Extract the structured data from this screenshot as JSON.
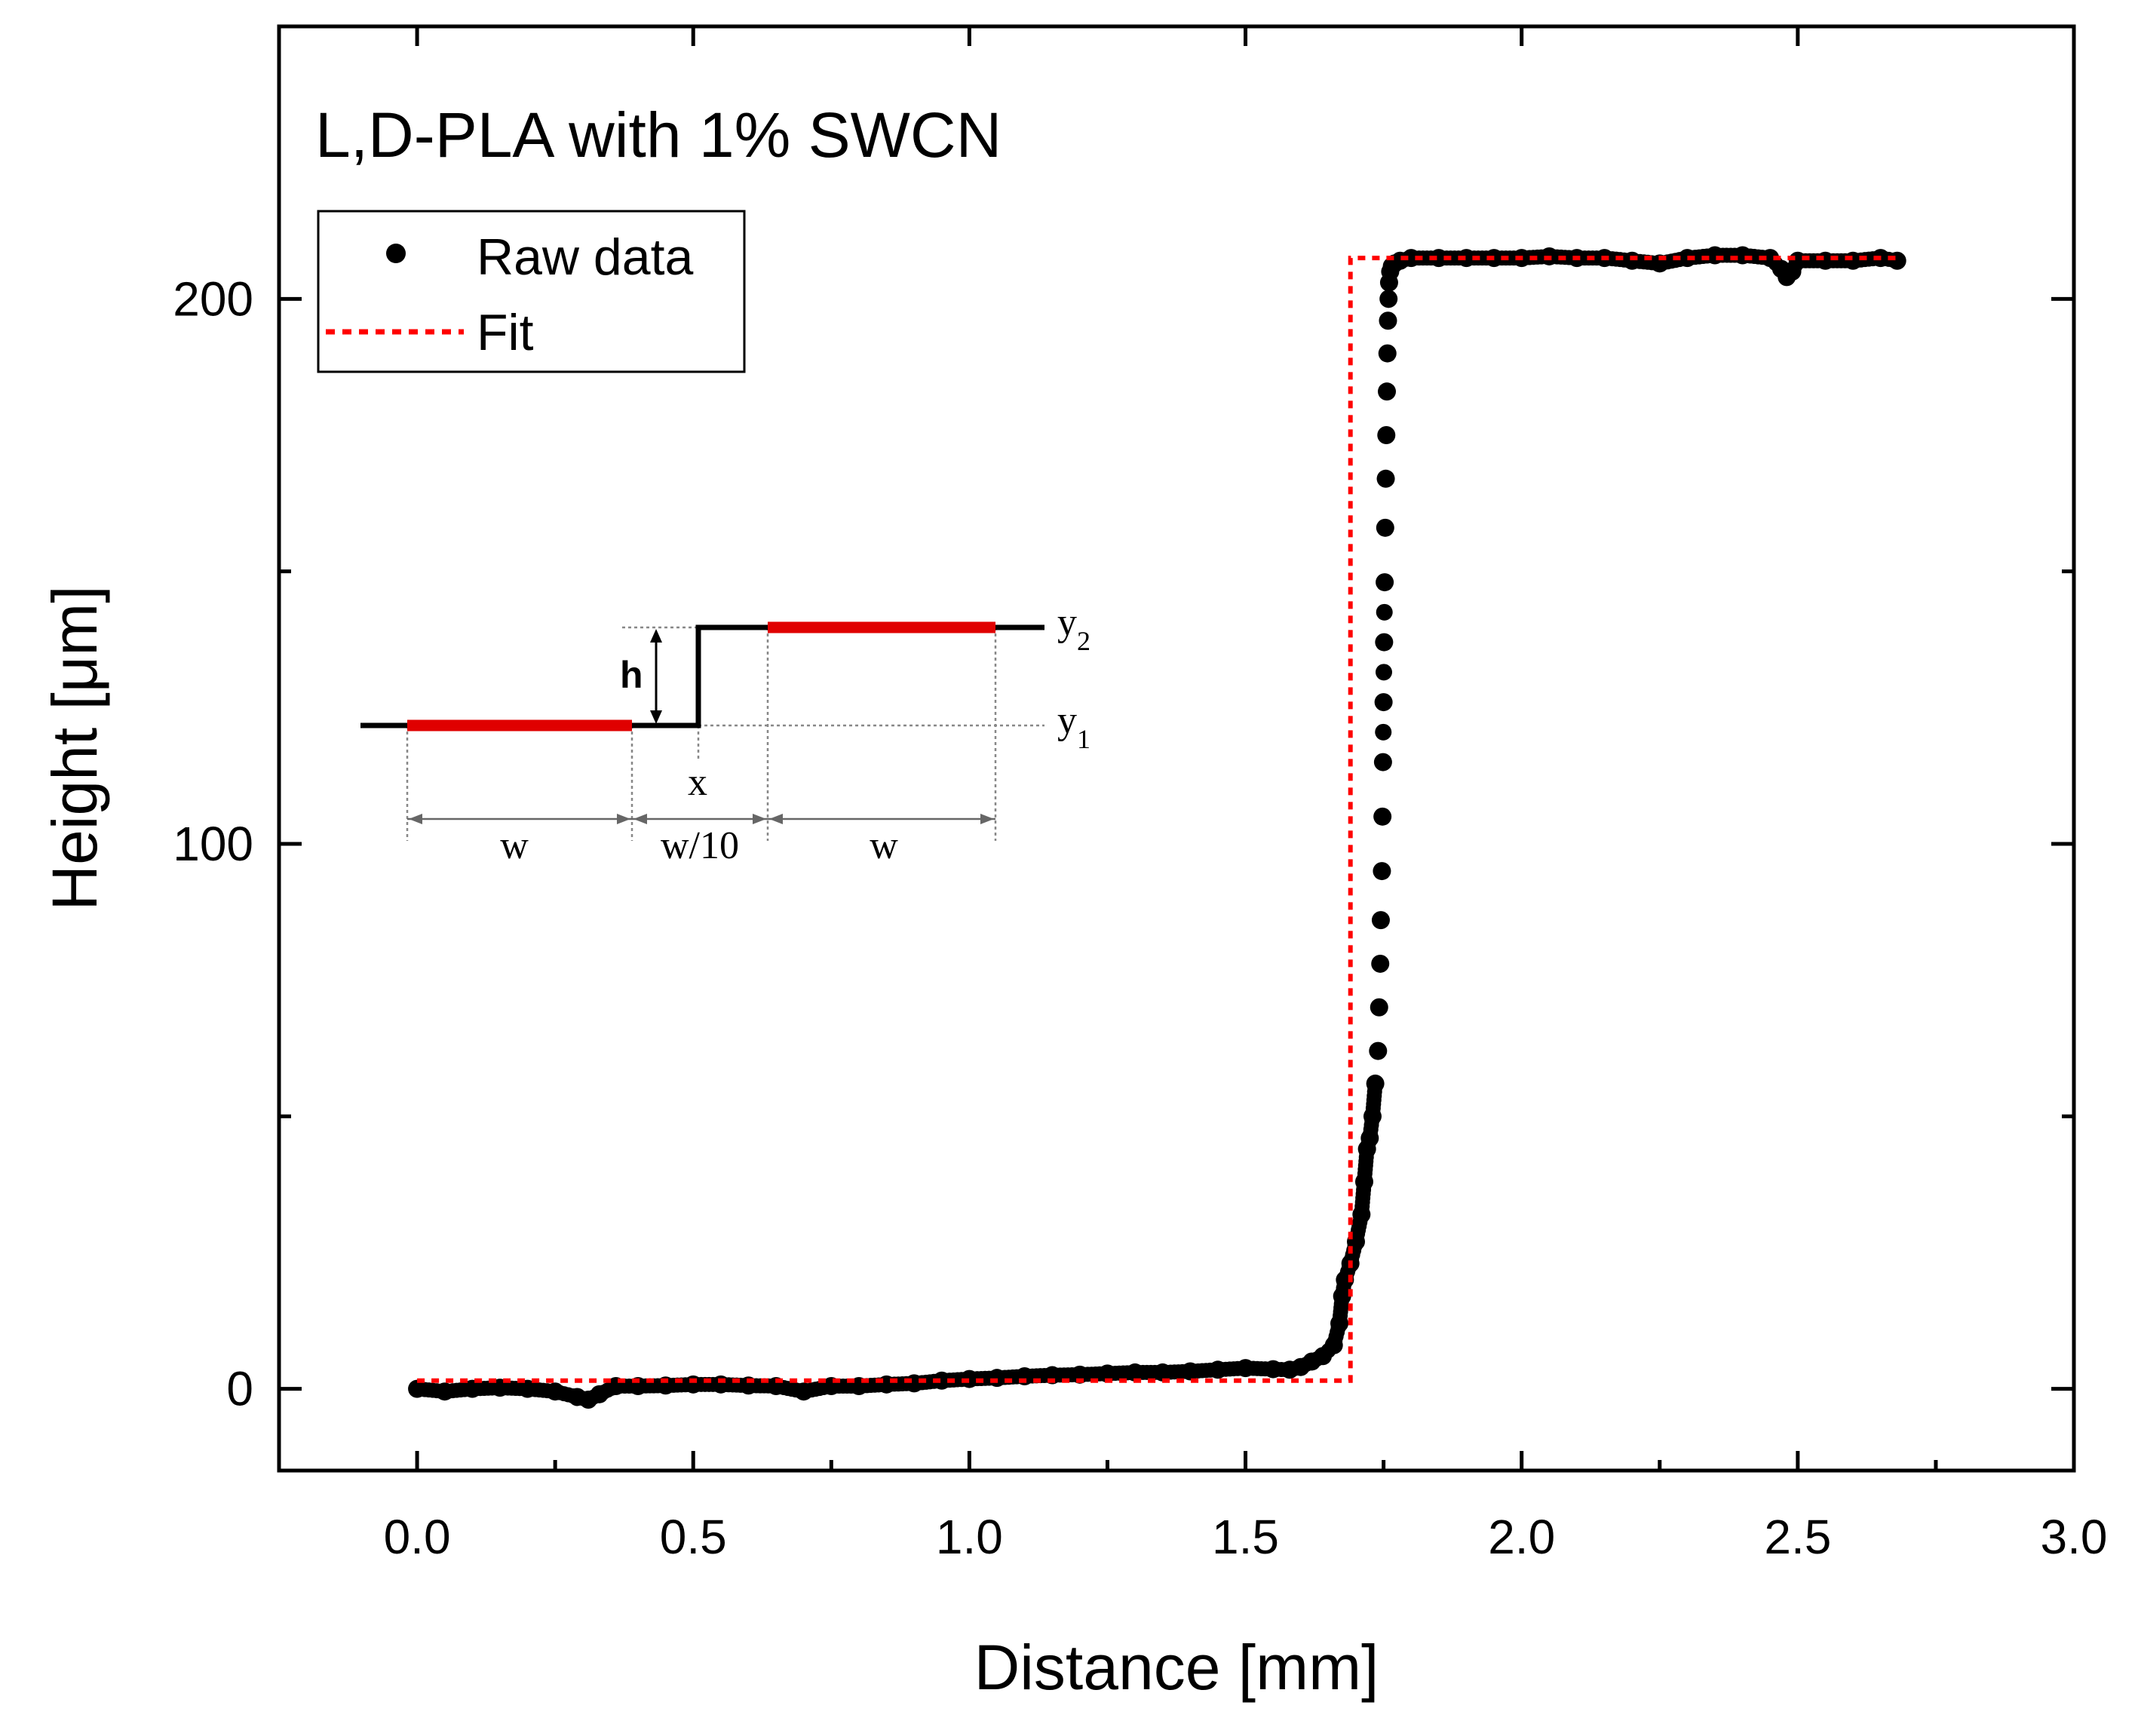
{
  "chart_data": {
    "type": "scatter",
    "title": "L,D-PLA with 1% SWCN",
    "xlabel": "Distance [mm]",
    "ylabel": "Height [μm]",
    "xlim": [
      -0.25,
      3.0
    ],
    "ylim": [
      -15,
      250
    ],
    "x_ticks": [
      0.0,
      0.5,
      1.0,
      1.5,
      2.0,
      2.5,
      3.0
    ],
    "x_tick_labels": [
      "0.0",
      "0.5",
      "1.0",
      "1.5",
      "2.0",
      "2.5",
      "3.0"
    ],
    "y_ticks": [
      0,
      100,
      200
    ],
    "y_tick_labels": [
      "0",
      "100",
      "200"
    ],
    "y_minor_ticks": [
      50,
      150
    ],
    "legend": {
      "position": "top-left",
      "entries": [
        {
          "label": "Raw data",
          "style": "black-dots"
        },
        {
          "label": "Fit",
          "style": "red-dotted-line"
        }
      ]
    },
    "series": [
      {
        "name": "Raw data",
        "color": "#000000",
        "points": [
          [
            0.0,
            0.0
          ],
          [
            0.05,
            -0.5
          ],
          [
            0.1,
            0.0
          ],
          [
            0.15,
            0.2
          ],
          [
            0.2,
            0.0
          ],
          [
            0.25,
            -0.5
          ],
          [
            0.29,
            -1.5
          ],
          [
            0.31,
            -2.0
          ],
          [
            0.33,
            -1.0
          ],
          [
            0.36,
            0.5
          ],
          [
            0.4,
            0.5
          ],
          [
            0.45,
            0.6
          ],
          [
            0.5,
            0.8
          ],
          [
            0.55,
            0.8
          ],
          [
            0.6,
            0.6
          ],
          [
            0.65,
            0.5
          ],
          [
            0.7,
            -0.5
          ],
          [
            0.75,
            0.5
          ],
          [
            0.8,
            0.5
          ],
          [
            0.85,
            0.8
          ],
          [
            0.9,
            1.0
          ],
          [
            0.95,
            1.5
          ],
          [
            1.0,
            1.8
          ],
          [
            1.05,
            2.0
          ],
          [
            1.1,
            2.3
          ],
          [
            1.15,
            2.5
          ],
          [
            1.2,
            2.6
          ],
          [
            1.25,
            2.8
          ],
          [
            1.3,
            3.0
          ],
          [
            1.35,
            3.0
          ],
          [
            1.4,
            3.2
          ],
          [
            1.45,
            3.5
          ],
          [
            1.5,
            3.8
          ],
          [
            1.55,
            3.6
          ],
          [
            1.58,
            3.5
          ],
          [
            1.6,
            4.0
          ],
          [
            1.62,
            5.0
          ],
          [
            1.64,
            6.0
          ],
          [
            1.66,
            8.0
          ],
          [
            1.67,
            12.0
          ],
          [
            1.675,
            17.0
          ],
          [
            1.68,
            20.0
          ],
          [
            1.69,
            23.0
          ],
          [
            1.7,
            27.0
          ],
          [
            1.71,
            32.0
          ],
          [
            1.715,
            38.0
          ],
          [
            1.72,
            44.0
          ],
          [
            1.725,
            46.0
          ],
          [
            1.73,
            50.0
          ],
          [
            1.735,
            56.0
          ],
          [
            1.74,
            62.0
          ],
          [
            1.742,
            70.0
          ],
          [
            1.744,
            78.0
          ],
          [
            1.745,
            86.0
          ],
          [
            1.747,
            95.0
          ],
          [
            1.748,
            105.0
          ],
          [
            1.749,
            115.0
          ],
          [
            1.75,
            126.0
          ],
          [
            1.751,
            137.0
          ],
          [
            1.752,
            148.0
          ],
          [
            1.753,
            158.0
          ],
          [
            1.754,
            167.0
          ],
          [
            1.755,
            175.0
          ],
          [
            1.756,
            183.0
          ],
          [
            1.757,
            190.0
          ],
          [
            1.758,
            196.0
          ],
          [
            1.759,
            200.0
          ],
          [
            1.76,
            203.0
          ],
          [
            1.762,
            205.0
          ],
          [
            1.765,
            206.0
          ],
          [
            1.77,
            206.5
          ],
          [
            1.78,
            207.0
          ],
          [
            1.8,
            207.5
          ],
          [
            1.85,
            207.5
          ],
          [
            1.9,
            207.5
          ],
          [
            1.95,
            207.5
          ],
          [
            2.0,
            207.5
          ],
          [
            2.05,
            207.8
          ],
          [
            2.1,
            207.5
          ],
          [
            2.15,
            207.5
          ],
          [
            2.2,
            207.0
          ],
          [
            2.25,
            206.5
          ],
          [
            2.3,
            207.5
          ],
          [
            2.35,
            208.0
          ],
          [
            2.4,
            208.0
          ],
          [
            2.45,
            207.5
          ],
          [
            2.47,
            205.5
          ],
          [
            2.48,
            204.0
          ],
          [
            2.49,
            205.0
          ],
          [
            2.5,
            207.0
          ],
          [
            2.55,
            207.0
          ],
          [
            2.6,
            207.0
          ],
          [
            2.65,
            207.5
          ],
          [
            2.68,
            207.0
          ]
        ]
      },
      {
        "name": "Fit",
        "color": "#ff0000",
        "points": [
          [
            0.0,
            1.5
          ],
          [
            1.69,
            1.5
          ],
          [
            1.69,
            207.5
          ],
          [
            2.68,
            207.5
          ]
        ]
      }
    ],
    "inset_schematic": {
      "labels": {
        "h": "h",
        "x": "x",
        "y1": "y",
        "y1_sub": "1",
        "y2": "y",
        "y2_sub": "2",
        "w_left": "w",
        "w_mid": "w/10",
        "w_right": "w"
      }
    }
  }
}
